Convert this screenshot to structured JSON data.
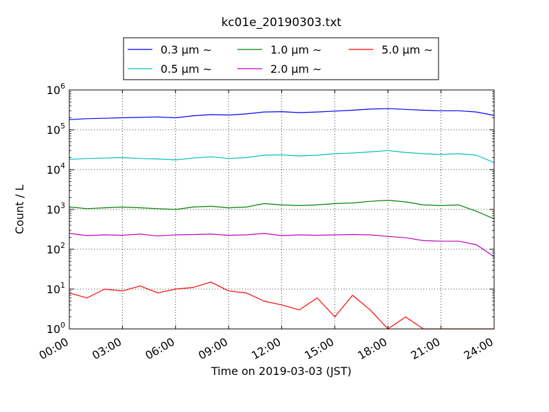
{
  "chart_data": {
    "type": "line",
    "title": "kc01e_20190303.txt",
    "xlabel": "Time on 2019-03-03 (JST)",
    "ylabel": "Count / L",
    "y_scale": "log",
    "ylim": [
      1,
      1000000
    ],
    "xlim": [
      "2019-03-03 00:00",
      "2019-03-04 00:00"
    ],
    "x_ticks": [
      "00:00",
      "03:00",
      "06:00",
      "09:00",
      "12:00",
      "15:00",
      "18:00",
      "21:00",
      "24:00"
    ],
    "y_ticks": [
      {
        "base": "10",
        "exp": "0"
      },
      {
        "base": "10",
        "exp": "1"
      },
      {
        "base": "10",
        "exp": "2"
      },
      {
        "base": "10",
        "exp": "3"
      },
      {
        "base": "10",
        "exp": "4"
      },
      {
        "base": "10",
        "exp": "5"
      },
      {
        "base": "10",
        "exp": "6"
      }
    ],
    "grid": true,
    "legend_position": "top-center, above plot",
    "x_hours": [
      0,
      1,
      2,
      3,
      4,
      5,
      6,
      7,
      8,
      9,
      10,
      11,
      12,
      13,
      14,
      15,
      16,
      17,
      18,
      19,
      20,
      21,
      22,
      23,
      24
    ],
    "series": [
      {
        "name": "0.3 μm ∼",
        "color": "#0000ff",
        "values": [
          180000,
          190000,
          195000,
          200000,
          205000,
          210000,
          200000,
          225000,
          240000,
          235000,
          250000,
          280000,
          285000,
          270000,
          280000,
          295000,
          310000,
          330000,
          340000,
          325000,
          310000,
          300000,
          300000,
          280000,
          230000
        ]
      },
      {
        "name": "0.5 μm ∼",
        "color": "#00bfbf",
        "values": [
          18000,
          19000,
          19500,
          20000,
          19000,
          18500,
          17500,
          19500,
          21000,
          19000,
          20000,
          23000,
          23500,
          22000,
          23000,
          25000,
          26000,
          28000,
          30000,
          27000,
          25000,
          24000,
          25000,
          23000,
          15000
        ]
      },
      {
        "name": "1.0 μm ∼",
        "color": "#008000",
        "values": [
          1150,
          1050,
          1100,
          1150,
          1100,
          1050,
          1000,
          1150,
          1200,
          1100,
          1150,
          1400,
          1300,
          1250,
          1300,
          1400,
          1450,
          1600,
          1700,
          1550,
          1300,
          1250,
          1300,
          900,
          580
        ]
      },
      {
        "name": "2.0 μm ∼",
        "color": "#bf00bf",
        "values": [
          250,
          220,
          230,
          225,
          240,
          215,
          230,
          235,
          240,
          225,
          230,
          250,
          220,
          230,
          225,
          230,
          235,
          230,
          210,
          195,
          165,
          160,
          160,
          130,
          65
        ]
      },
      {
        "name": "5.0 μm ∼",
        "color": "#ff0000",
        "values": [
          8,
          6,
          10,
          9,
          12,
          8,
          10,
          11,
          15,
          9,
          8,
          5,
          4,
          3,
          6,
          2,
          7,
          3,
          1,
          2,
          1,
          1,
          1,
          1,
          1
        ]
      }
    ]
  }
}
